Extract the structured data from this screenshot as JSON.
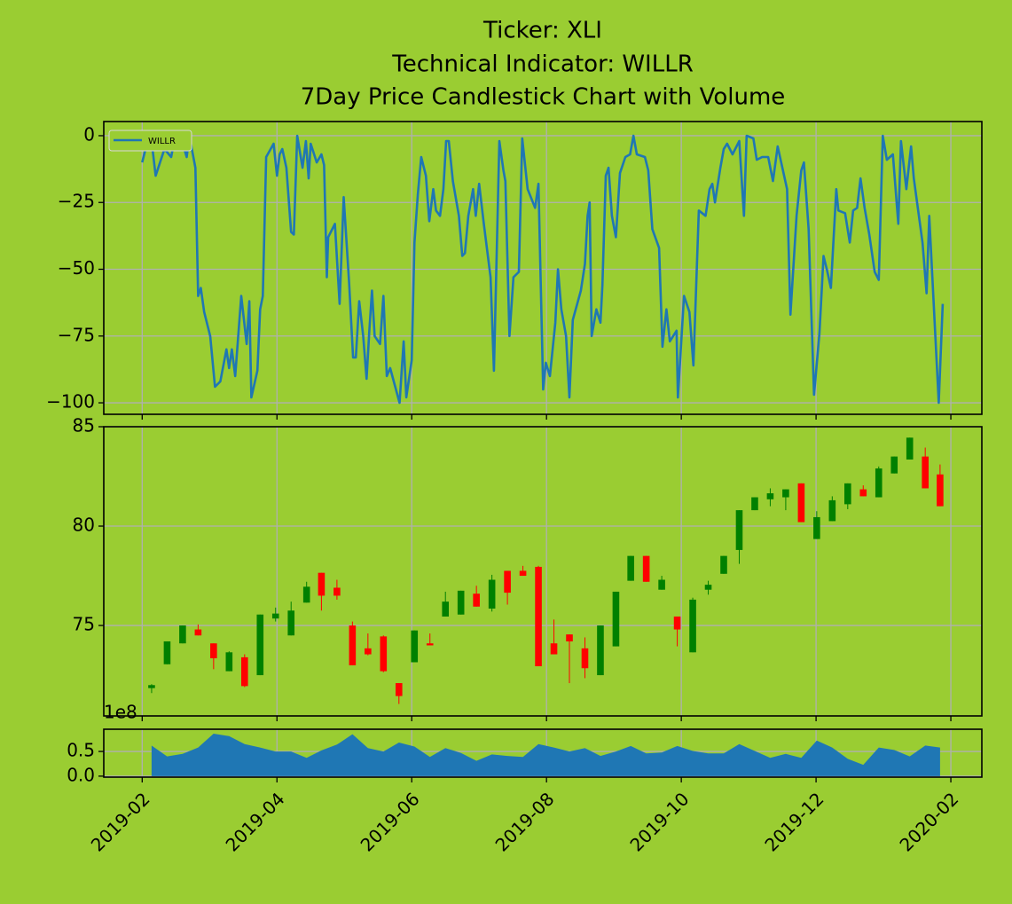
{
  "chart_data": [
    {
      "type": "line",
      "title": [
        "Ticker: XLI",
        "Technical Indicator: WILLR",
        "7Day Price Candlestick Chart with Volume"
      ],
      "series": [
        {
          "name": "WILLR",
          "color": "#1f77b4",
          "x": [
            1.0,
            1.07,
            1.13,
            1.2,
            1.33,
            1.43,
            1.49,
            1.59,
            1.66,
            1.7,
            1.79,
            1.83,
            1.87,
            1.92,
            2.01,
            2.08,
            2.16,
            2.25,
            2.29,
            2.33,
            2.38,
            2.47,
            2.55,
            2.59,
            2.62,
            2.71,
            2.75,
            2.79,
            2.84,
            2.95,
            3.0,
            3.04,
            3.08,
            3.14,
            3.21,
            3.25,
            3.3,
            3.38,
            3.43,
            3.47,
            3.5,
            3.59,
            3.66,
            3.7,
            3.74,
            3.76,
            3.86,
            3.93,
            3.99,
            4.07,
            4.13,
            4.17,
            4.22,
            4.28,
            4.33,
            4.37,
            4.41,
            4.45,
            4.53,
            4.58,
            4.63,
            4.68,
            4.82,
            4.88,
            4.92,
            5.0,
            5.04,
            5.09,
            5.14,
            5.21,
            5.26,
            5.32,
            5.36,
            5.42,
            5.47,
            5.51,
            5.55,
            5.61,
            5.7,
            5.75,
            5.79,
            5.84,
            5.91,
            5.95,
            6.0,
            6.07,
            6.17,
            6.22,
            6.3,
            6.36,
            6.39,
            6.45,
            6.51,
            6.59,
            6.64,
            6.72,
            6.83,
            6.88,
            6.95,
            6.99,
            7.05,
            7.13,
            7.17,
            7.22,
            7.29,
            7.34,
            7.39,
            7.51,
            7.57,
            7.61,
            7.64,
            7.67,
            7.74,
            7.8,
            7.83,
            7.88,
            7.92,
            7.97,
            8.03,
            8.09,
            8.17,
            8.24,
            8.29,
            8.34,
            8.46,
            8.51,
            8.57,
            8.67,
            8.72,
            8.78,
            8.83,
            8.93,
            8.95,
            9.04,
            9.12,
            9.18,
            9.26,
            9.36,
            9.42,
            9.46,
            9.5,
            9.58,
            9.63,
            9.68,
            9.76,
            9.86,
            9.93,
            9.97,
            10.07,
            10.12,
            10.2,
            10.29,
            10.36,
            10.43,
            10.57,
            10.62,
            10.71,
            10.78,
            10.82,
            10.89,
            10.97,
            11.05,
            11.11,
            11.16,
            11.22,
            11.3,
            11.33,
            11.43,
            11.5,
            11.55,
            11.61,
            11.66,
            11.72,
            11.79,
            11.87,
            11.93,
            11.99,
            12.05,
            12.14,
            12.22,
            12.26,
            12.34,
            12.41,
            12.45,
            12.58,
            12.64,
            12.68,
            12.82,
            12.88
          ],
          "values": [
            -10,
            -3,
            0,
            -15,
            -5,
            -8,
            0,
            -2,
            -8,
            0,
            -12,
            -60,
            -57,
            -66,
            -75,
            -94,
            -92,
            -80,
            -87,
            -80,
            -90,
            -60,
            -78,
            -62,
            -98,
            -88,
            -65,
            -60,
            -8,
            -3,
            -15,
            -7,
            -5,
            -12,
            -36,
            -37,
            0,
            -12,
            -2,
            -16,
            -3,
            -10,
            -7,
            -11,
            -53,
            -38,
            -33,
            -63,
            -23,
            -55,
            -83,
            -83,
            -62,
            -75,
            -91,
            -73,
            -58,
            -75,
            -78,
            -60,
            -90,
            -87,
            -100,
            -77,
            -98,
            -84,
            -40,
            -22,
            -8,
            -15,
            -32,
            -20,
            -28,
            -30,
            -20,
            -2,
            -2,
            -17,
            -30,
            -45,
            -44,
            -30,
            -20,
            -30,
            -18,
            -33,
            -53,
            -88,
            -2,
            -13,
            -17,
            -75,
            -53,
            -51,
            -1,
            -20,
            -27,
            -18,
            -95,
            -85,
            -90,
            -70,
            -50,
            -65,
            -75,
            -98,
            -69,
            -58,
            -48,
            -30,
            -25,
            -75,
            -65,
            -70,
            -56,
            -15,
            -12,
            -30,
            -38,
            -14,
            -8,
            -7,
            0,
            -7,
            -8,
            -13,
            -35,
            -42,
            -79,
            -65,
            -77,
            -73,
            -98,
            -60,
            -66,
            -86,
            -28,
            -30,
            -20,
            -18,
            -25,
            -12,
            -5,
            -3,
            -7,
            -2,
            -30,
            0,
            -1,
            -9,
            -8,
            -8,
            -17,
            -4,
            -20,
            -67,
            -30,
            -13,
            -10,
            -35,
            -97,
            -74,
            -45,
            -50,
            -57,
            -20,
            -28,
            -29,
            -40,
            -28,
            -27,
            -16,
            -27,
            -37,
            -51,
            -54,
            0,
            -9,
            -7,
            -33,
            -2,
            -20,
            -4,
            -16,
            -40,
            -59,
            -30,
            -100,
            -63
          ]
        }
      ],
      "ylim": [
        -104.3,
        5.3
      ],
      "yticks": [
        0,
        {
          "value": -25,
          "label": "−25"
        },
        {
          "value": -50,
          "label": "−50"
        },
        {
          "value": -75,
          "label": "−75"
        },
        {
          "value": -100,
          "label": "−100"
        }
      ],
      "grid": true,
      "legend": "upper left"
    },
    {
      "type": "candlestick",
      "x": [
        1.14,
        1.37,
        1.6,
        1.83,
        2.06,
        2.29,
        2.52,
        2.75,
        2.98,
        3.21,
        3.44,
        3.66,
        3.89,
        4.12,
        4.35,
        4.58,
        4.81,
        5.04,
        5.27,
        5.5,
        5.73,
        5.96,
        6.19,
        6.42,
        6.65,
        6.88,
        7.11,
        7.34,
        7.57,
        7.8,
        8.03,
        8.25,
        8.48,
        8.71,
        8.94,
        9.17,
        9.4,
        9.63,
        9.86,
        10.09,
        10.32,
        10.55,
        10.78,
        11.01,
        11.24,
        11.47,
        11.7,
        11.93,
        12.16,
        12.39,
        12.62,
        12.84
      ],
      "open": [
        71.85,
        73.05,
        74.1,
        74.8,
        74.1,
        72.7,
        73.4,
        72.5,
        75.35,
        74.5,
        76.15,
        77.65,
        76.9,
        75.0,
        73.85,
        74.45,
        72.1,
        73.15,
        74.1,
        75.45,
        75.55,
        76.6,
        75.85,
        77.75,
        77.75,
        77.95,
        74.1,
        74.55,
        73.85,
        72.5,
        73.95,
        77.25,
        78.5,
        76.8,
        75.45,
        73.65,
        76.8,
        77.6,
        78.8,
        80.8,
        81.35,
        81.45,
        82.15,
        79.35,
        80.25,
        81.1,
        81.85,
        81.45,
        82.65,
        83.35,
        83.5,
        82.6
      ],
      "high": [
        72.05,
        74.2,
        75.0,
        75.05,
        74.1,
        73.7,
        73.55,
        75.55,
        75.9,
        76.2,
        77.2,
        77.65,
        77.3,
        75.2,
        74.6,
        74.5,
        72.1,
        74.75,
        74.6,
        76.7,
        76.75,
        77.0,
        77.55,
        77.75,
        78.0,
        78.0,
        75.3,
        74.55,
        74.4,
        75.0,
        76.7,
        78.5,
        78.5,
        77.5,
        75.45,
        76.4,
        77.25,
        78.5,
        80.8,
        81.45,
        81.9,
        81.85,
        82.15,
        80.75,
        81.5,
        82.15,
        82.05,
        83.0,
        83.5,
        84.45,
        83.95,
        83.1
      ],
      "low": [
        71.6,
        73.05,
        74.1,
        74.5,
        72.8,
        72.7,
        71.9,
        72.5,
        75.2,
        74.5,
        76.15,
        75.75,
        76.3,
        73.0,
        73.5,
        72.65,
        71.05,
        73.15,
        74.0,
        75.45,
        75.55,
        75.95,
        75.7,
        76.05,
        77.5,
        72.95,
        73.55,
        72.1,
        72.35,
        72.5,
        73.95,
        77.25,
        77.2,
        76.8,
        73.95,
        73.65,
        76.55,
        77.6,
        78.1,
        80.8,
        81.0,
        80.8,
        80.2,
        79.35,
        80.25,
        80.85,
        81.5,
        81.45,
        82.65,
        83.35,
        81.9,
        81.0
      ],
      "close": [
        72.0,
        74.2,
        75.0,
        74.5,
        73.35,
        73.65,
        71.95,
        75.55,
        75.6,
        75.75,
        76.95,
        76.5,
        76.5,
        73.0,
        73.55,
        72.7,
        71.45,
        74.75,
        74.0,
        76.2,
        76.75,
        75.95,
        77.3,
        76.65,
        77.5,
        72.95,
        73.55,
        74.2,
        72.85,
        75.0,
        76.7,
        78.5,
        77.2,
        77.3,
        74.8,
        76.3,
        77.05,
        78.5,
        80.8,
        81.45,
        81.65,
        81.85,
        80.2,
        80.45,
        81.3,
        82.15,
        81.5,
        82.9,
        83.5,
        84.45,
        81.9,
        81.0
      ],
      "up_color": "green",
      "down_color": "red",
      "ylim": [
        70.45,
        85
      ],
      "yticks": [
        75,
        80,
        85
      ],
      "grid": true
    },
    {
      "type": "area",
      "x": [
        1.14,
        1.37,
        1.6,
        1.83,
        2.06,
        2.29,
        2.52,
        2.75,
        2.98,
        3.21,
        3.44,
        3.66,
        3.89,
        4.12,
        4.35,
        4.58,
        4.81,
        5.04,
        5.27,
        5.5,
        5.73,
        5.96,
        6.19,
        6.42,
        6.65,
        6.88,
        7.11,
        7.34,
        7.57,
        7.8,
        8.03,
        8.25,
        8.48,
        8.71,
        8.94,
        9.17,
        9.4,
        9.63,
        9.86,
        10.09,
        10.32,
        10.55,
        10.78,
        11.01,
        11.24,
        11.47,
        11.7,
        11.93,
        12.16,
        12.39,
        12.62,
        12.84
      ],
      "values": [
        0.62,
        0.4,
        0.45,
        0.58,
        0.86,
        0.81,
        0.65,
        0.58,
        0.5,
        0.5,
        0.37,
        0.52,
        0.64,
        0.85,
        0.57,
        0.5,
        0.68,
        0.6,
        0.39,
        0.57,
        0.47,
        0.31,
        0.44,
        0.41,
        0.39,
        0.65,
        0.58,
        0.5,
        0.57,
        0.41,
        0.5,
        0.61,
        0.46,
        0.48,
        0.61,
        0.51,
        0.46,
        0.46,
        0.65,
        0.51,
        0.37,
        0.45,
        0.37,
        0.72,
        0.58,
        0.35,
        0.23,
        0.58,
        0.53,
        0.4,
        0.62,
        0.58
      ],
      "color": "#1f77b4",
      "offset_text": "1e8",
      "ylim": [
        -0.02,
        0.95
      ],
      "yticks": [
        {
          "value": 0,
          "label": "0.0"
        },
        0.5
      ],
      "xlim": [
        0.43,
        13.46
      ],
      "xticks": [
        {
          "value": 1,
          "label": "2019-02"
        },
        {
          "value": 3,
          "label": "2019-04"
        },
        {
          "value": 5,
          "label": "2019-06"
        },
        {
          "value": 7,
          "label": "2019-08"
        },
        {
          "value": 9,
          "label": "2019-10"
        },
        {
          "value": 11,
          "label": "2019-12"
        },
        {
          "value": 13,
          "label": "2020-02"
        }
      ],
      "grid": true
    }
  ]
}
